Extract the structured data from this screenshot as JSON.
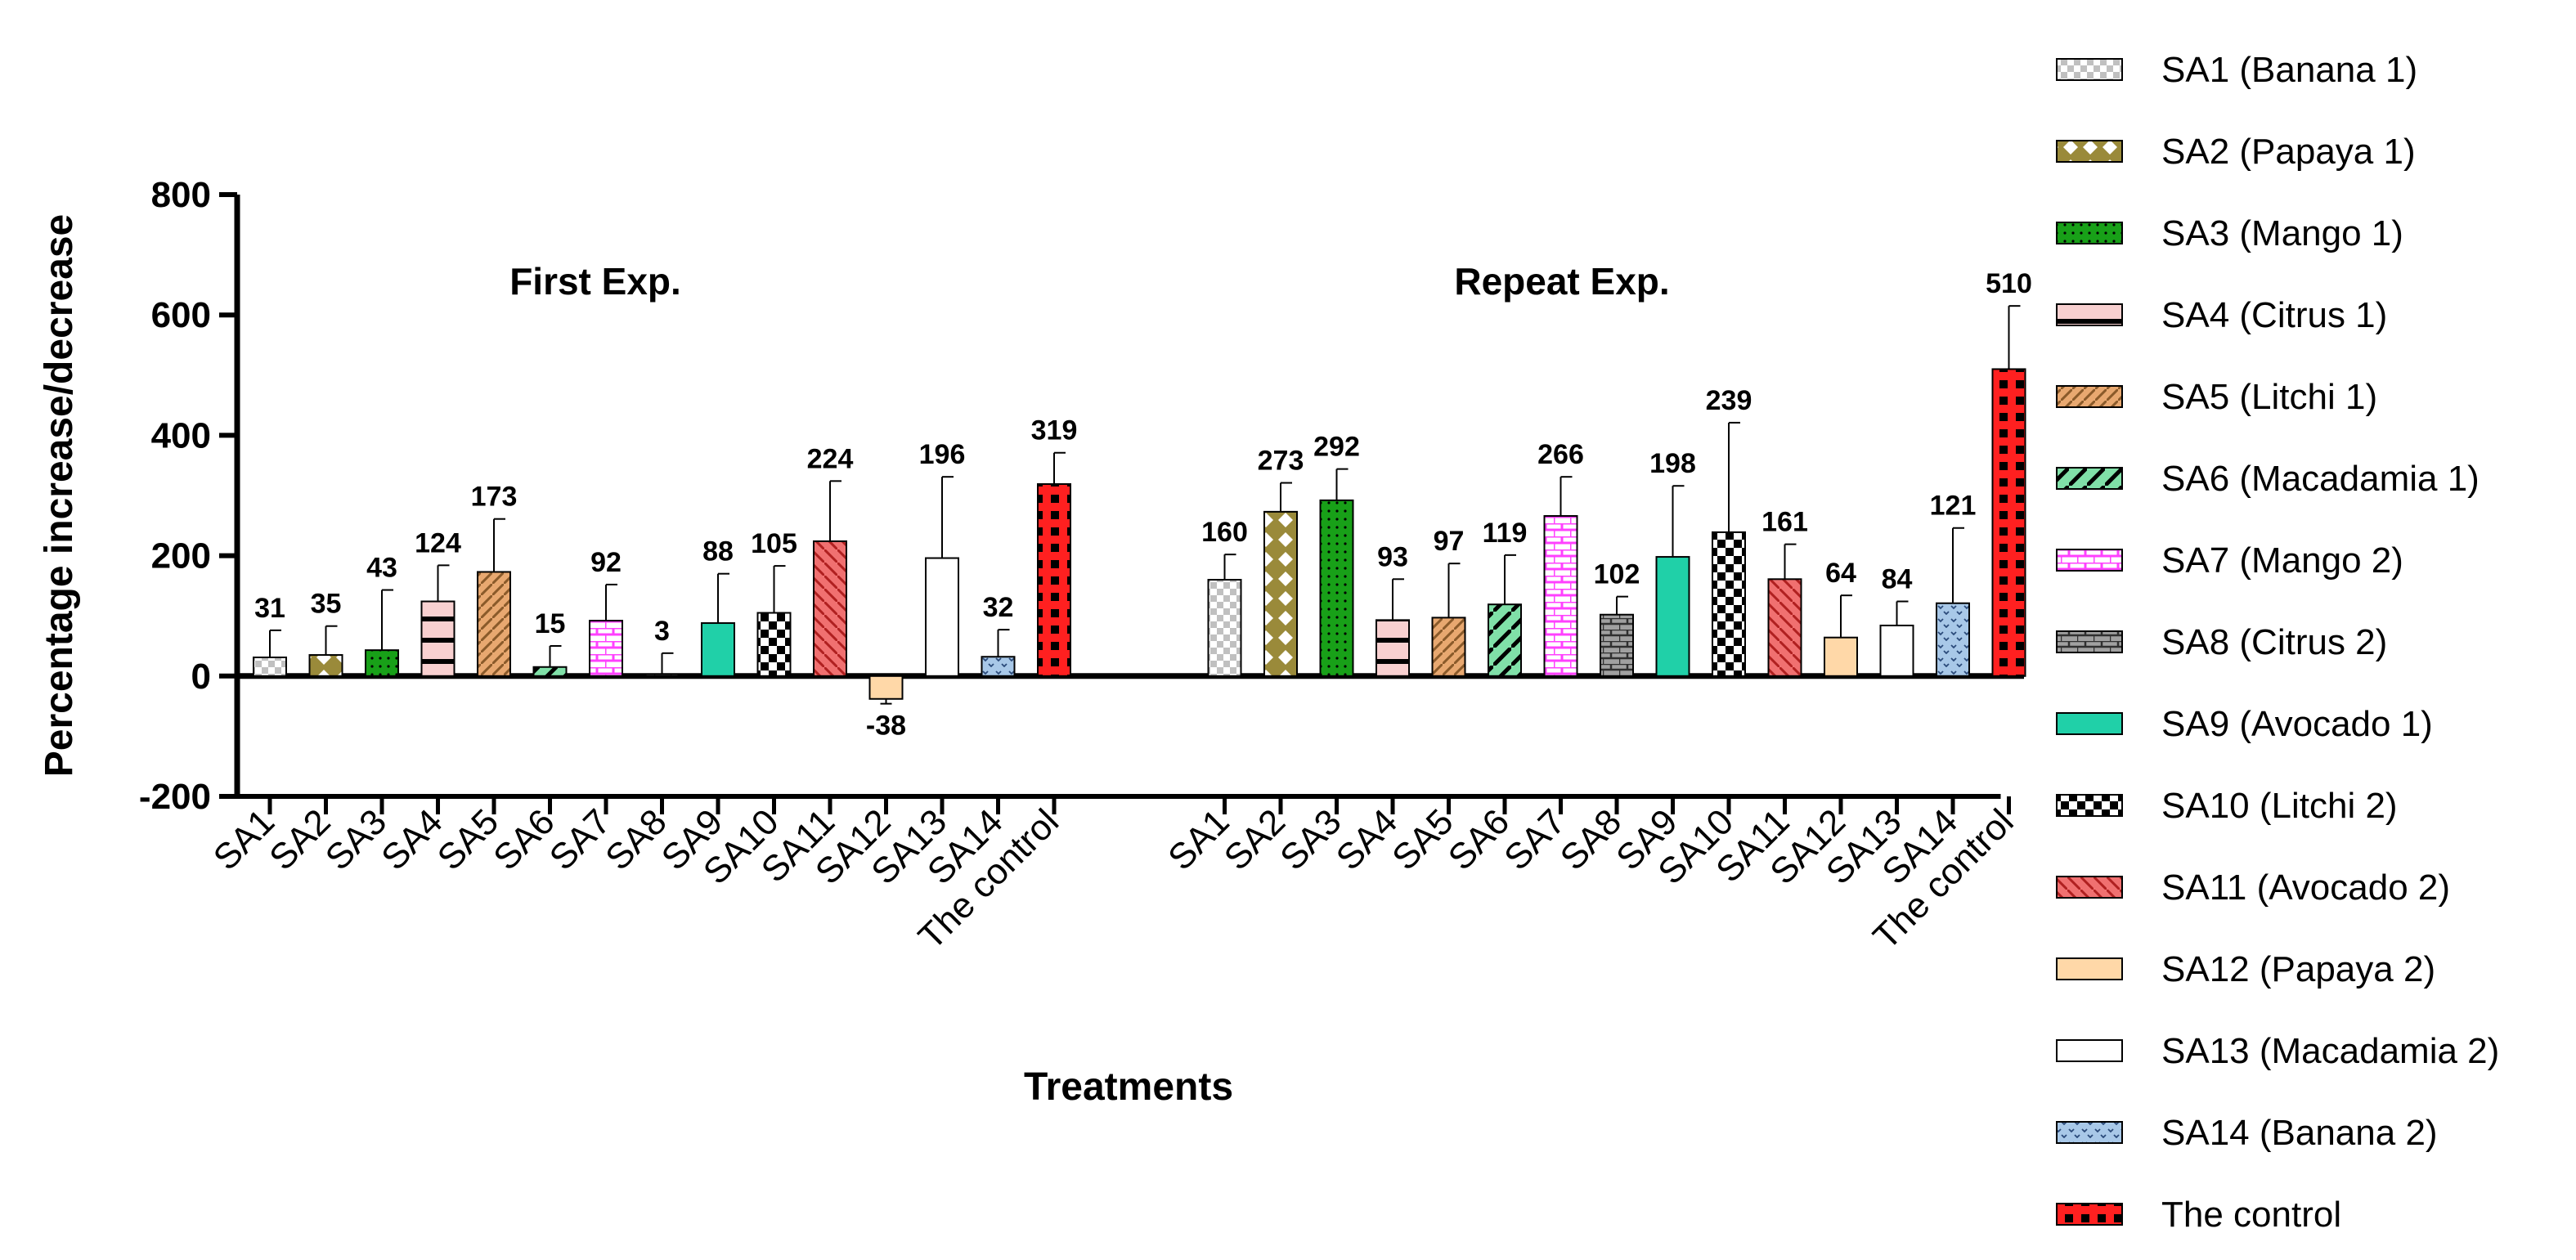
{
  "chart_data": {
    "type": "bar",
    "ylabel": "Percentage increase/decrease",
    "xlabel": "Treatments",
    "ylim": [
      -200,
      800
    ],
    "yticks": [
      -200,
      0,
      200,
      400,
      600,
      800
    ],
    "grid": false,
    "legend_position": "right",
    "groups": [
      {
        "label": "First Exp.",
        "categories": [
          "SA1",
          "SA2",
          "SA3",
          "SA4",
          "SA5",
          "SA6",
          "SA7",
          "SA8",
          "SA9",
          "SA10",
          "SA11",
          "SA12",
          "SA13",
          "SA14",
          "The control"
        ],
        "values": [
          31,
          35,
          43,
          124,
          173,
          15,
          92,
          3,
          88,
          105,
          224,
          -38,
          196,
          32,
          319
        ],
        "labels": [
          "31",
          "35",
          "43",
          "124",
          "173",
          "15",
          "92",
          "3",
          "88",
          "105",
          "224",
          "-38",
          "196",
          "32",
          "319"
        ],
        "errors": [
          45,
          48,
          100,
          60,
          88,
          35,
          60,
          35,
          82,
          78,
          100,
          8,
          135,
          45,
          52
        ]
      },
      {
        "label": "Repeat Exp.",
        "categories": [
          "SA1",
          "SA2",
          "SA3",
          "SA4",
          "SA5",
          "SA6",
          "SA7",
          "SA8",
          "SA9",
          "SA10",
          "SA11",
          "SA12",
          "SA13",
          "SA14",
          "The control"
        ],
        "values": [
          160,
          273,
          292,
          93,
          97,
          119,
          266,
          102,
          198,
          239,
          161,
          64,
          84,
          121,
          510
        ],
        "labels": [
          "160",
          "273",
          "292",
          "93",
          "97",
          "119",
          "266",
          "102",
          "198",
          "239",
          "161",
          "64",
          "84",
          "121",
          "510"
        ],
        "errors": [
          42,
          48,
          52,
          68,
          90,
          82,
          65,
          30,
          118,
          182,
          58,
          70,
          40,
          125,
          105
        ]
      }
    ],
    "legend": [
      "SA1 (Banana 1)",
      "SA2 (Papaya 1)",
      "SA3 (Mango 1)",
      "SA4 (Citrus 1)",
      "SA5 (Litchi 1)",
      "SA6 (Macadamia 1)",
      "SA7 (Mango 2)",
      "SA8 (Citrus 2)",
      "SA9 (Avocado 1)",
      "SA10 (Litchi 2)",
      "SA11 (Avocado 2)",
      "SA12 (Papaya 2)",
      "SA13 (Macadamia 2)",
      "SA14 (Banana 2)",
      "The control"
    ],
    "colors": [
      "#c8c8c8",
      "#9a8a3a",
      "#1aa01a",
      "#f8d0d0",
      "#e8a870",
      "#80e0a8",
      "#ff80ff",
      "#909090",
      "#20d0a8",
      "#000000",
      "#f07070",
      "#ffd8a8",
      "#ffffff",
      "#a8c8e8",
      "#ff2020"
    ]
  }
}
